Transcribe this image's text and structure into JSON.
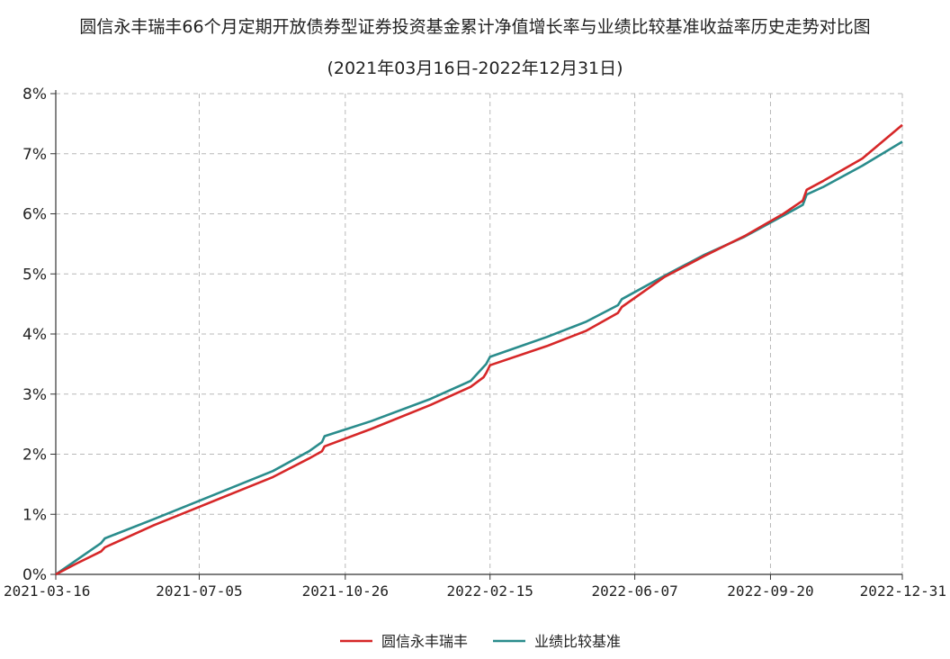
{
  "chart_data": {
    "type": "line",
    "title": "圆信永丰瑞丰66个月定期开放债券型证券投资基金累计净值增长率与业绩比较基准收益率历史走势对比图",
    "subtitle": "(2021年03月16日-2022年12月31日)",
    "xlabel": "",
    "ylabel": "",
    "x_tick_labels": [
      "2021-03-16",
      "2021-07-05",
      "2021-10-26",
      "2022-02-15",
      "2022-06-07",
      "2022-09-20",
      "2022-12-31"
    ],
    "y_tick_labels": [
      "0%",
      "1%",
      "2%",
      "3%",
      "4%",
      "5%",
      "6%",
      "7%",
      "8%"
    ],
    "ylim": [
      0,
      8
    ],
    "xlim": [
      "2021-03-16",
      "2022-12-31"
    ],
    "grid": true,
    "legend_position": "bottom-center",
    "series": [
      {
        "name": "圆信永丰瑞丰",
        "color": "#d62728",
        "points": [
          [
            "2021-03-16",
            0.0
          ],
          [
            "2021-04-01",
            0.18
          ],
          [
            "2021-04-20",
            0.38
          ],
          [
            "2021-04-23",
            0.45
          ],
          [
            "2021-05-31",
            0.82
          ],
          [
            "2021-06-30",
            1.08
          ],
          [
            "2021-07-31",
            1.35
          ],
          [
            "2021-08-31",
            1.62
          ],
          [
            "2021-09-28",
            1.93
          ],
          [
            "2021-10-08",
            2.05
          ],
          [
            "2021-10-10",
            2.13
          ],
          [
            "2021-11-15",
            2.42
          ],
          [
            "2021-12-31",
            2.82
          ],
          [
            "2022-01-31",
            3.12
          ],
          [
            "2022-02-10",
            3.28
          ],
          [
            "2022-02-12",
            3.35
          ],
          [
            "2022-02-15",
            3.48
          ],
          [
            "2022-03-31",
            3.8
          ],
          [
            "2022-04-30",
            4.05
          ],
          [
            "2022-05-25",
            4.35
          ],
          [
            "2022-05-28",
            4.45
          ],
          [
            "2022-06-30",
            4.95
          ],
          [
            "2022-07-31",
            5.3
          ],
          [
            "2022-08-31",
            5.63
          ],
          [
            "2022-09-30",
            6.0
          ],
          [
            "2022-10-15",
            6.22
          ],
          [
            "2022-10-18",
            6.4
          ],
          [
            "2022-10-31",
            6.55
          ],
          [
            "2022-11-30",
            6.92
          ],
          [
            "2022-12-31",
            7.48
          ]
        ]
      },
      {
        "name": "业绩比较基准",
        "color": "#2a8c8c",
        "points": [
          [
            "2021-03-16",
            0.0
          ],
          [
            "2021-04-20",
            0.52
          ],
          [
            "2021-04-23",
            0.6
          ],
          [
            "2021-05-31",
            0.92
          ],
          [
            "2021-06-30",
            1.18
          ],
          [
            "2021-07-31",
            1.45
          ],
          [
            "2021-08-31",
            1.72
          ],
          [
            "2021-09-28",
            2.05
          ],
          [
            "2021-10-08",
            2.2
          ],
          [
            "2021-10-10",
            2.3
          ],
          [
            "2021-11-15",
            2.55
          ],
          [
            "2021-12-31",
            2.92
          ],
          [
            "2022-01-31",
            3.22
          ],
          [
            "2022-02-12",
            3.5
          ],
          [
            "2022-02-15",
            3.62
          ],
          [
            "2022-03-31",
            3.95
          ],
          [
            "2022-04-30",
            4.2
          ],
          [
            "2022-05-25",
            4.48
          ],
          [
            "2022-05-28",
            4.58
          ],
          [
            "2022-06-30",
            4.97
          ],
          [
            "2022-07-31",
            5.32
          ],
          [
            "2022-08-31",
            5.62
          ],
          [
            "2022-09-30",
            5.97
          ],
          [
            "2022-10-15",
            6.15
          ],
          [
            "2022-10-18",
            6.32
          ],
          [
            "2022-10-31",
            6.45
          ],
          [
            "2022-11-30",
            6.8
          ],
          [
            "2022-12-31",
            7.2
          ]
        ]
      }
    ]
  }
}
